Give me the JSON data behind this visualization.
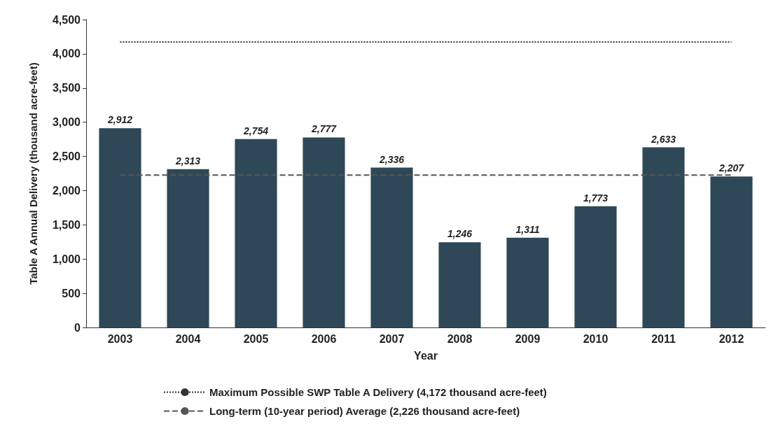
{
  "chart_data": {
    "type": "bar",
    "xlabel": "Year",
    "ylabel": "Table A Annual Delivery (thousand acre-feet)",
    "categories": [
      "2003",
      "2004",
      "2005",
      "2006",
      "2007",
      "2008",
      "2009",
      "2010",
      "2011",
      "2012"
    ],
    "values": [
      2912,
      2313,
      2754,
      2777,
      2336,
      1246,
      1311,
      1773,
      2633,
      2207
    ],
    "color": "#2f4858",
    "value_labels": [
      "2,912",
      "2,313",
      "2,754",
      "2,777",
      "2,336",
      "1,246",
      "1,311",
      "1,773",
      "2,633",
      "2,207"
    ],
    "ylim": [
      0,
      4500
    ],
    "yticks": [
      0,
      500,
      {
        "value": 1000,
        "label": "1,000"
      },
      {
        "value": 1500,
        "label": "1,500"
      },
      {
        "value": 2000,
        "label": "2,000"
      },
      {
        "value": 2500,
        "label": "2,500"
      },
      {
        "value": 3000,
        "label": "3,000"
      },
      {
        "value": 3500,
        "label": "3,500"
      },
      {
        "value": 4000,
        "label": "4,000"
      },
      {
        "value": 4500,
        "label": "4,500"
      }
    ],
    "grid": false,
    "legend": "bottom",
    "ref_lines": [
      {
        "axis": "y",
        "value": 4172,
        "label": "Maximum Possible SWP Table A Delivery (4,172 thousand acre-feet)",
        "color": "#333333",
        "line_style": "dotted"
      },
      {
        "axis": "y",
        "value": 2226,
        "label": "Long-term (10-year period) Average (2,226 thousand acre-feet)",
        "color": "#555555",
        "line_style": "dashed"
      }
    ]
  }
}
